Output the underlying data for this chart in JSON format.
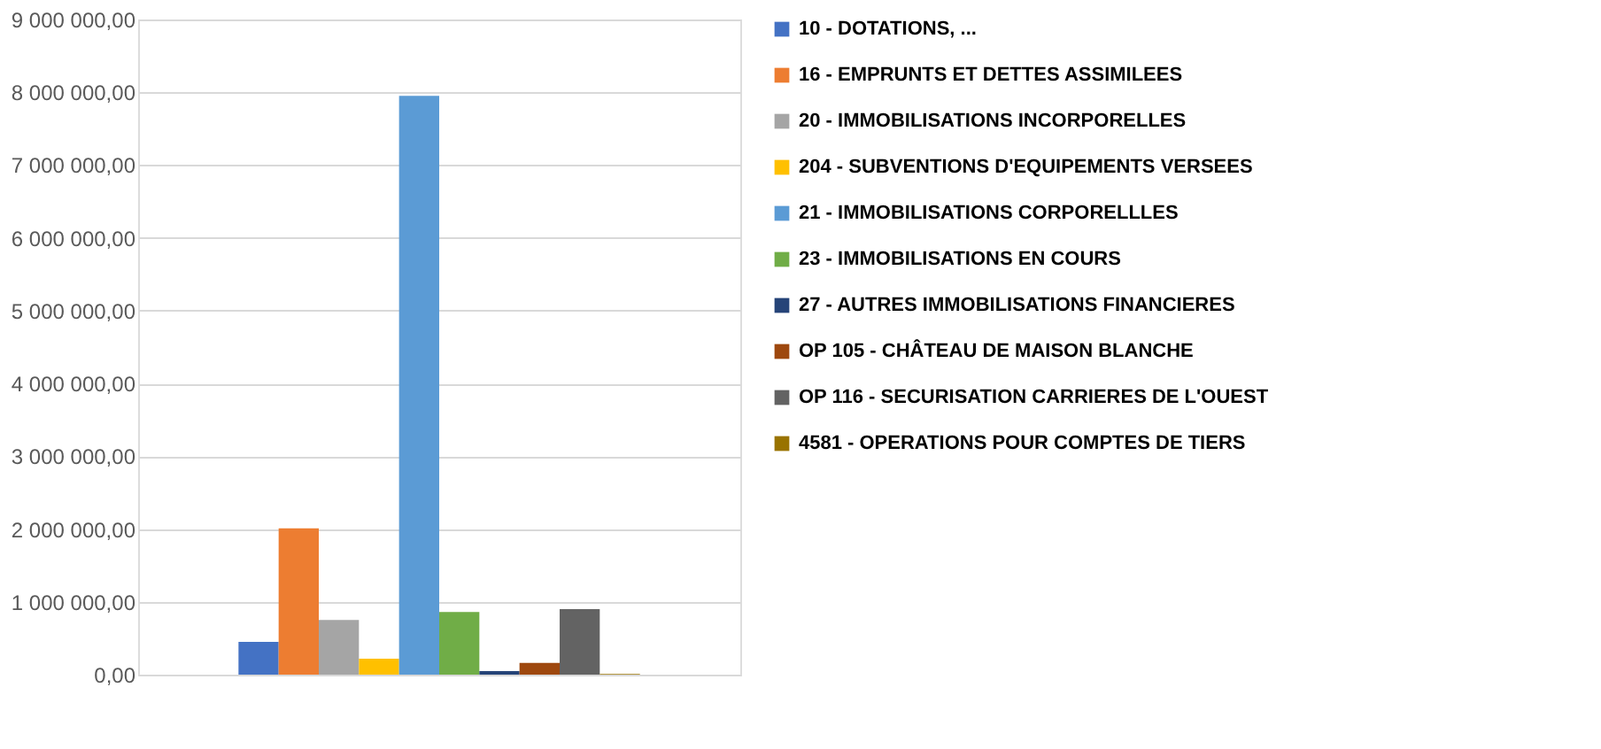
{
  "chart_data": {
    "type": "bar",
    "categories": [
      null
    ],
    "series": [
      {
        "name": "10 - DOTATIONS, ...",
        "color": "#4472c4",
        "values": [
          450000
        ]
      },
      {
        "name": "16 - EMPRUNTS ET DETTES ASSIMILEES",
        "color": "#ed7d31",
        "values": [
          2010000
        ]
      },
      {
        "name": "20 - IMMOBILISATIONS INCORPORELLES",
        "color": "#a5a5a5",
        "values": [
          750000
        ]
      },
      {
        "name": "204 - SUBVENTIONS D'EQUIPEMENTS VERSEES",
        "color": "#ffc000",
        "values": [
          220000
        ]
      },
      {
        "name": "21 - IMMOBILISATIONS CORPORELLLES",
        "color": "#5b9bd5",
        "values": [
          7950000
        ]
      },
      {
        "name": "23 - IMMOBILISATIONS EN COURS",
        "color": "#70ad47",
        "values": [
          860000
        ]
      },
      {
        "name": "27 - AUTRES IMMOBILISATIONS FINANCIERES",
        "color": "#264478",
        "values": [
          50000
        ]
      },
      {
        "name": "OP 105 - CHÂTEAU DE MAISON BLANCHE",
        "color": "#9e480e",
        "values": [
          160000
        ]
      },
      {
        "name": "OP 116 - SECURISATION CARRIERES DE L'OUEST",
        "color": "#636363",
        "values": [
          900000
        ]
      },
      {
        "name": "4581 - OPERATIONS POUR COMPTES DE TIERS",
        "color": "#997300",
        "values": [
          10000
        ]
      }
    ],
    "ylim": [
      0,
      9000000
    ],
    "yticks": [
      {
        "value": 0,
        "label": "0,00"
      },
      {
        "value": 1000000,
        "label": "1 000 000,00"
      },
      {
        "value": 2000000,
        "label": "2 000 000,00"
      },
      {
        "value": 3000000,
        "label": "3 000 000,00"
      },
      {
        "value": 4000000,
        "label": "4 000 000,00"
      },
      {
        "value": 5000000,
        "label": "5 000 000,00"
      },
      {
        "value": 6000000,
        "label": "6 000 000,00"
      },
      {
        "value": 7000000,
        "label": "7 000 000,00"
      },
      {
        "value": 8000000,
        "label": "8 000 000,00"
      },
      {
        "value": 9000000,
        "label": "9 000 000,00"
      }
    ],
    "grid": "y",
    "legend": "right",
    "tick_labels": "y"
  }
}
